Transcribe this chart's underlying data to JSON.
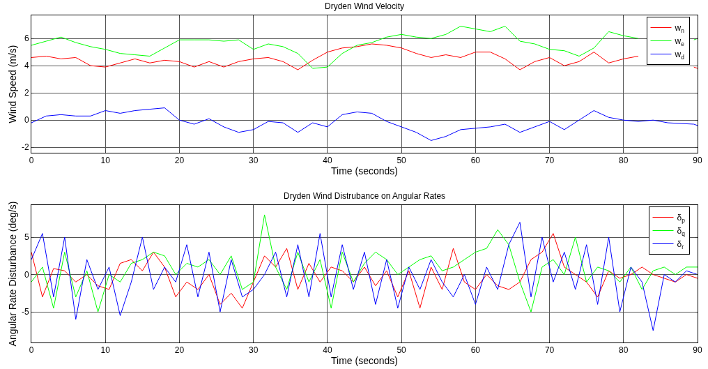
{
  "chart_data": [
    {
      "type": "line",
      "title": "Dryden Wind Velocity",
      "xlabel": "Time (seconds)",
      "ylabel": "Wind Speed (m/s)",
      "xlim": [
        0,
        90
      ],
      "xticks": [
        0,
        10,
        20,
        30,
        40,
        50,
        60,
        70,
        80,
        90
      ],
      "ylim": [
        -2.4,
        7.7
      ],
      "yticks": [
        -2,
        0,
        2,
        4,
        6
      ],
      "grid": true,
      "legend": "top right",
      "marker": "none",
      "line_style": "solid",
      "x": [
        0,
        2,
        4,
        6,
        8,
        10,
        12,
        14,
        16,
        18,
        20,
        22,
        24,
        26,
        28,
        30,
        32,
        34,
        36,
        38,
        40,
        42,
        44,
        46,
        48,
        50,
        52,
        54,
        56,
        58,
        60,
        62,
        64,
        66,
        68,
        70,
        72,
        74,
        76,
        78,
        80,
        82,
        84,
        86,
        89.5,
        90
      ],
      "series": [
        {
          "name": "w$_{n}$",
          "color": "#ff0000",
          "values": [
            4.6,
            4.7,
            4.5,
            4.6,
            4.0,
            3.9,
            4.2,
            4.5,
            4.2,
            4.4,
            4.3,
            3.9,
            4.3,
            3.9,
            4.3,
            4.5,
            4.6,
            4.3,
            3.7,
            4.4,
            5.0,
            5.3,
            5.4,
            5.6,
            5.5,
            5.3,
            4.9,
            4.6,
            4.8,
            4.6,
            5.0,
            5.0,
            4.5,
            3.7,
            4.3,
            4.6,
            4.0,
            4.3,
            5.0,
            4.2,
            4.5,
            4.7,
            null,
            null,
            3.9,
            3.8
          ]
        },
        {
          "name": "w$_{e}$",
          "color": "#00ff00",
          "values": [
            5.5,
            5.8,
            6.1,
            5.7,
            5.4,
            5.2,
            4.9,
            4.8,
            4.7,
            5.3,
            5.9,
            5.9,
            5.9,
            5.8,
            5.9,
            5.2,
            5.6,
            5.4,
            4.9,
            3.8,
            3.9,
            4.9,
            5.5,
            5.7,
            6.1,
            6.3,
            6.1,
            6.0,
            6.3,
            6.9,
            6.7,
            6.5,
            6.9,
            5.8,
            5.6,
            5.2,
            5.1,
            4.7,
            5.3,
            6.5,
            6.2,
            6.0,
            null,
            null,
            5.9,
            6.0
          ]
        },
        {
          "name": "w$_{d}$",
          "color": "#0000ff",
          "values": [
            -0.2,
            0.3,
            0.4,
            0.3,
            0.3,
            0.7,
            0.5,
            0.7,
            0.8,
            0.9,
            0.0,
            -0.3,
            0.1,
            -0.5,
            -0.9,
            -0.7,
            -0.1,
            -0.2,
            -0.9,
            -0.2,
            -0.5,
            0.4,
            0.6,
            0.5,
            -0.1,
            -0.5,
            -0.9,
            -1.5,
            -1.2,
            -0.7,
            -0.6,
            -0.5,
            -0.3,
            -0.9,
            -0.5,
            -0.1,
            -0.7,
            0.0,
            0.7,
            0.2,
            0.0,
            -0.1,
            0.0,
            -0.2,
            -0.3,
            -0.4
          ]
        }
      ]
    },
    {
      "type": "line",
      "title": "Dryden Wind Distrubance on Angular Rates",
      "xlabel": "Time (seconds)",
      "ylabel": "Angular Rate Disturbance (deg/s)",
      "xlim": [
        0,
        90
      ],
      "xticks": [
        0,
        10,
        20,
        30,
        40,
        50,
        60,
        70,
        80,
        90
      ],
      "ylim": [
        -9.1,
        9.3
      ],
      "yticks": [
        -5,
        0,
        5
      ],
      "grid": true,
      "legend": "top right",
      "marker": "none",
      "line_style": "solid",
      "x": [
        0,
        1.5,
        3,
        4.5,
        6,
        7.5,
        9,
        10.5,
        12,
        13.5,
        15,
        16.5,
        18,
        19.5,
        21,
        22.5,
        24,
        25.5,
        27,
        28.5,
        30,
        31.5,
        33,
        34.5,
        36,
        37.5,
        39,
        40.5,
        42,
        43.5,
        45,
        46.5,
        48,
        49.5,
        51,
        52.5,
        54,
        55.5,
        57,
        58.5,
        60,
        61.5,
        63,
        64.5,
        66,
        67.5,
        69,
        70.5,
        72,
        73.5,
        75,
        76.5,
        78,
        79.5,
        81,
        82.5,
        84,
        85.5,
        87,
        88.5,
        90
      ],
      "series": [
        {
          "name": "δ$_{p}$",
          "color": "#ff0000",
          "values": [
            3,
            -3,
            0.8,
            0.5,
            -1,
            0,
            -1.5,
            -2,
            1.5,
            2,
            0.5,
            3,
            1,
            -3,
            -1,
            -2,
            0,
            -4,
            -2.5,
            -4.5,
            -1,
            2.5,
            1,
            3.5,
            -2,
            1.5,
            -1,
            1,
            0.5,
            -1,
            1,
            -1.5,
            0.5,
            -3,
            0.5,
            -4.5,
            1,
            -2,
            3.5,
            -1,
            -2,
            0,
            -1.5,
            -2,
            -1,
            2,
            3,
            5.5,
            1,
            0,
            -1,
            -3,
            0.5,
            -0.5,
            0,
            1,
            0,
            -0.5,
            -1,
            0,
            -0.5
          ]
        },
        {
          "name": "δ$_{q}$",
          "color": "#00ff00",
          "values": [
            -1,
            1,
            -4.5,
            3,
            -3,
            0.5,
            -5,
            0,
            -1,
            1.5,
            2,
            3,
            2.5,
            0,
            1.5,
            1,
            2,
            0,
            2.5,
            -2,
            -1,
            8,
            1,
            -2,
            3,
            -1,
            2,
            -4.5,
            3,
            -1,
            1.5,
            3,
            2,
            0,
            1,
            2,
            2.5,
            0.5,
            1,
            2,
            3,
            3.5,
            6,
            4,
            -1,
            -5,
            1,
            2,
            0,
            5,
            -1,
            1,
            0.5,
            -1,
            1,
            -2,
            0.5,
            1,
            0,
            1,
            1
          ]
        },
        {
          "name": "δ$_{r}$",
          "color": "#0000ff",
          "values": [
            2,
            5.5,
            -3,
            5,
            -6,
            2,
            -2,
            1,
            -5.5,
            -1,
            5,
            -2,
            1,
            -1,
            4,
            -3,
            3,
            -5,
            2,
            -3,
            -2,
            0,
            3,
            -3,
            4,
            -3,
            5.5,
            -3,
            4,
            -2,
            3,
            -4,
            2,
            -4.5,
            1,
            -2,
            2,
            -1,
            -3,
            0,
            -4,
            1,
            -2,
            4,
            7,
            -3,
            5,
            -1,
            3,
            -2,
            4,
            -4,
            5,
            -5,
            1,
            -1,
            -7.5,
            0,
            -1,
            0.5,
            0
          ]
        }
      ]
    }
  ]
}
